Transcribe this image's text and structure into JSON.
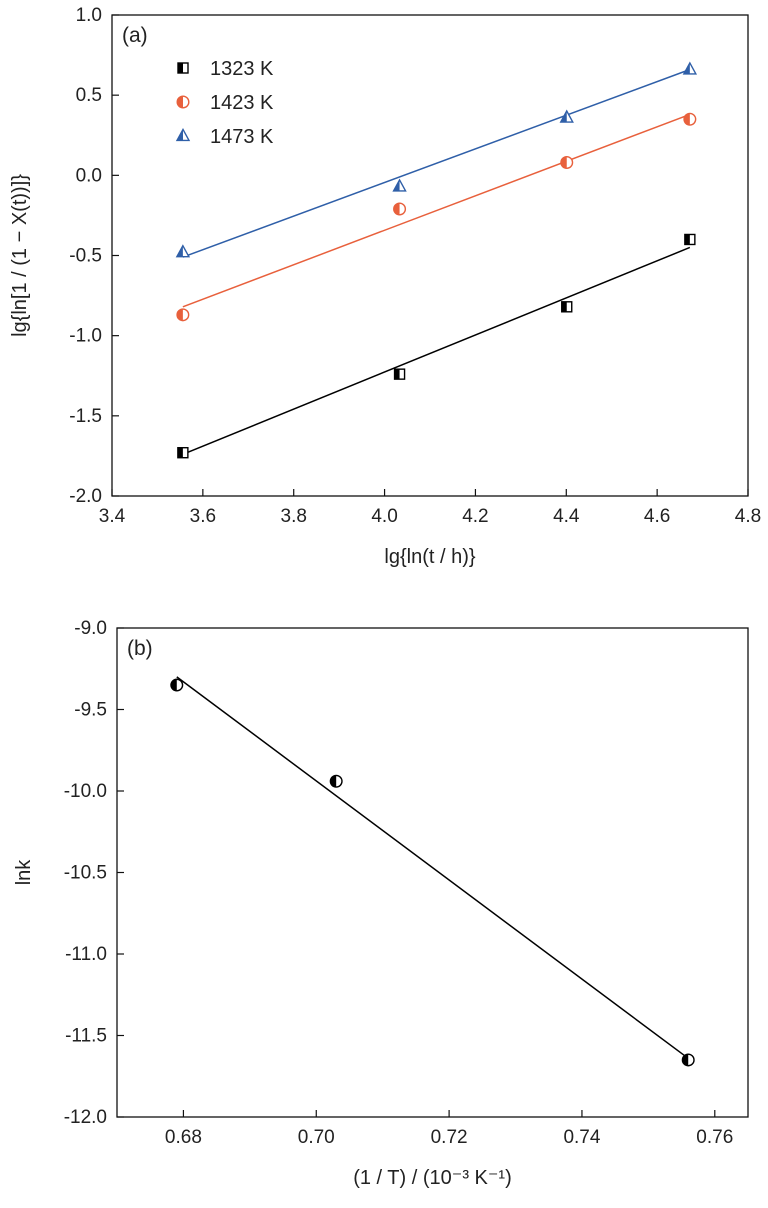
{
  "chart_data": [
    {
      "type": "scatter",
      "panel_label": "(a)",
      "xlabel": "lg{ln(t / h)}",
      "ylabel": "lg{ln[1 / (1 − X(t))]}",
      "xlim": [
        3.4,
        4.8
      ],
      "ylim": [
        -2.0,
        1.0
      ],
      "xticks": [
        "3.4",
        "3.6",
        "3.8",
        "4.0",
        "4.2",
        "4.4",
        "4.6",
        "4.8"
      ],
      "yticks": [
        "-2.0",
        "-1.5",
        "-1.0",
        "-0.5",
        "0.0",
        "0.5",
        "1.0"
      ],
      "legend_placement": "top-left",
      "series": [
        {
          "name": "1323 K",
          "color": "#000000",
          "marker": "half-square",
          "x": [
            3.556,
            4.033,
            4.401,
            4.672
          ],
          "y": [
            -1.73,
            -1.24,
            -0.82,
            -0.4
          ],
          "fit_line": [
            [
              3.556,
              -1.74
            ],
            [
              4.672,
              -0.45
            ]
          ]
        },
        {
          "name": "1423 K",
          "color": "#e8603c",
          "marker": "half-circle",
          "x": [
            3.556,
            4.033,
            4.401,
            4.672
          ],
          "y": [
            -0.87,
            -0.21,
            0.08,
            0.35
          ],
          "fit_line": [
            [
              3.556,
              -0.82
            ],
            [
              4.672,
              0.38
            ]
          ]
        },
        {
          "name": "1473 K",
          "color": "#2f5fa8",
          "marker": "half-triangle",
          "x": [
            3.556,
            4.033,
            4.401,
            4.672
          ],
          "y": [
            -0.48,
            -0.07,
            0.36,
            0.66
          ],
          "fit_line": [
            [
              3.556,
              -0.51
            ],
            [
              4.672,
              0.66
            ]
          ]
        }
      ]
    },
    {
      "type": "scatter",
      "panel_label": "(b)",
      "xlabel": "(1 / T) / (10⁻³ K⁻¹)",
      "ylabel": "lnk",
      "xlim": [
        0.67,
        0.765
      ],
      "ylim": [
        -12.0,
        -9.0
      ],
      "xticks": [
        "0.68",
        "0.70",
        "0.72",
        "0.74",
        "0.76"
      ],
      "yticks": [
        "-12.0",
        "-11.5",
        "-11.0",
        "-10.5",
        "-10.0",
        "-9.5",
        "-9.0"
      ],
      "series": [
        {
          "color": "#000000",
          "marker": "half-circle",
          "x": [
            0.679,
            0.703,
            0.756
          ],
          "y": [
            -9.35,
            -9.94,
            -11.65
          ],
          "fit_line": [
            [
              0.679,
              -9.3
            ],
            [
              0.756,
              -11.64
            ]
          ]
        }
      ]
    }
  ]
}
